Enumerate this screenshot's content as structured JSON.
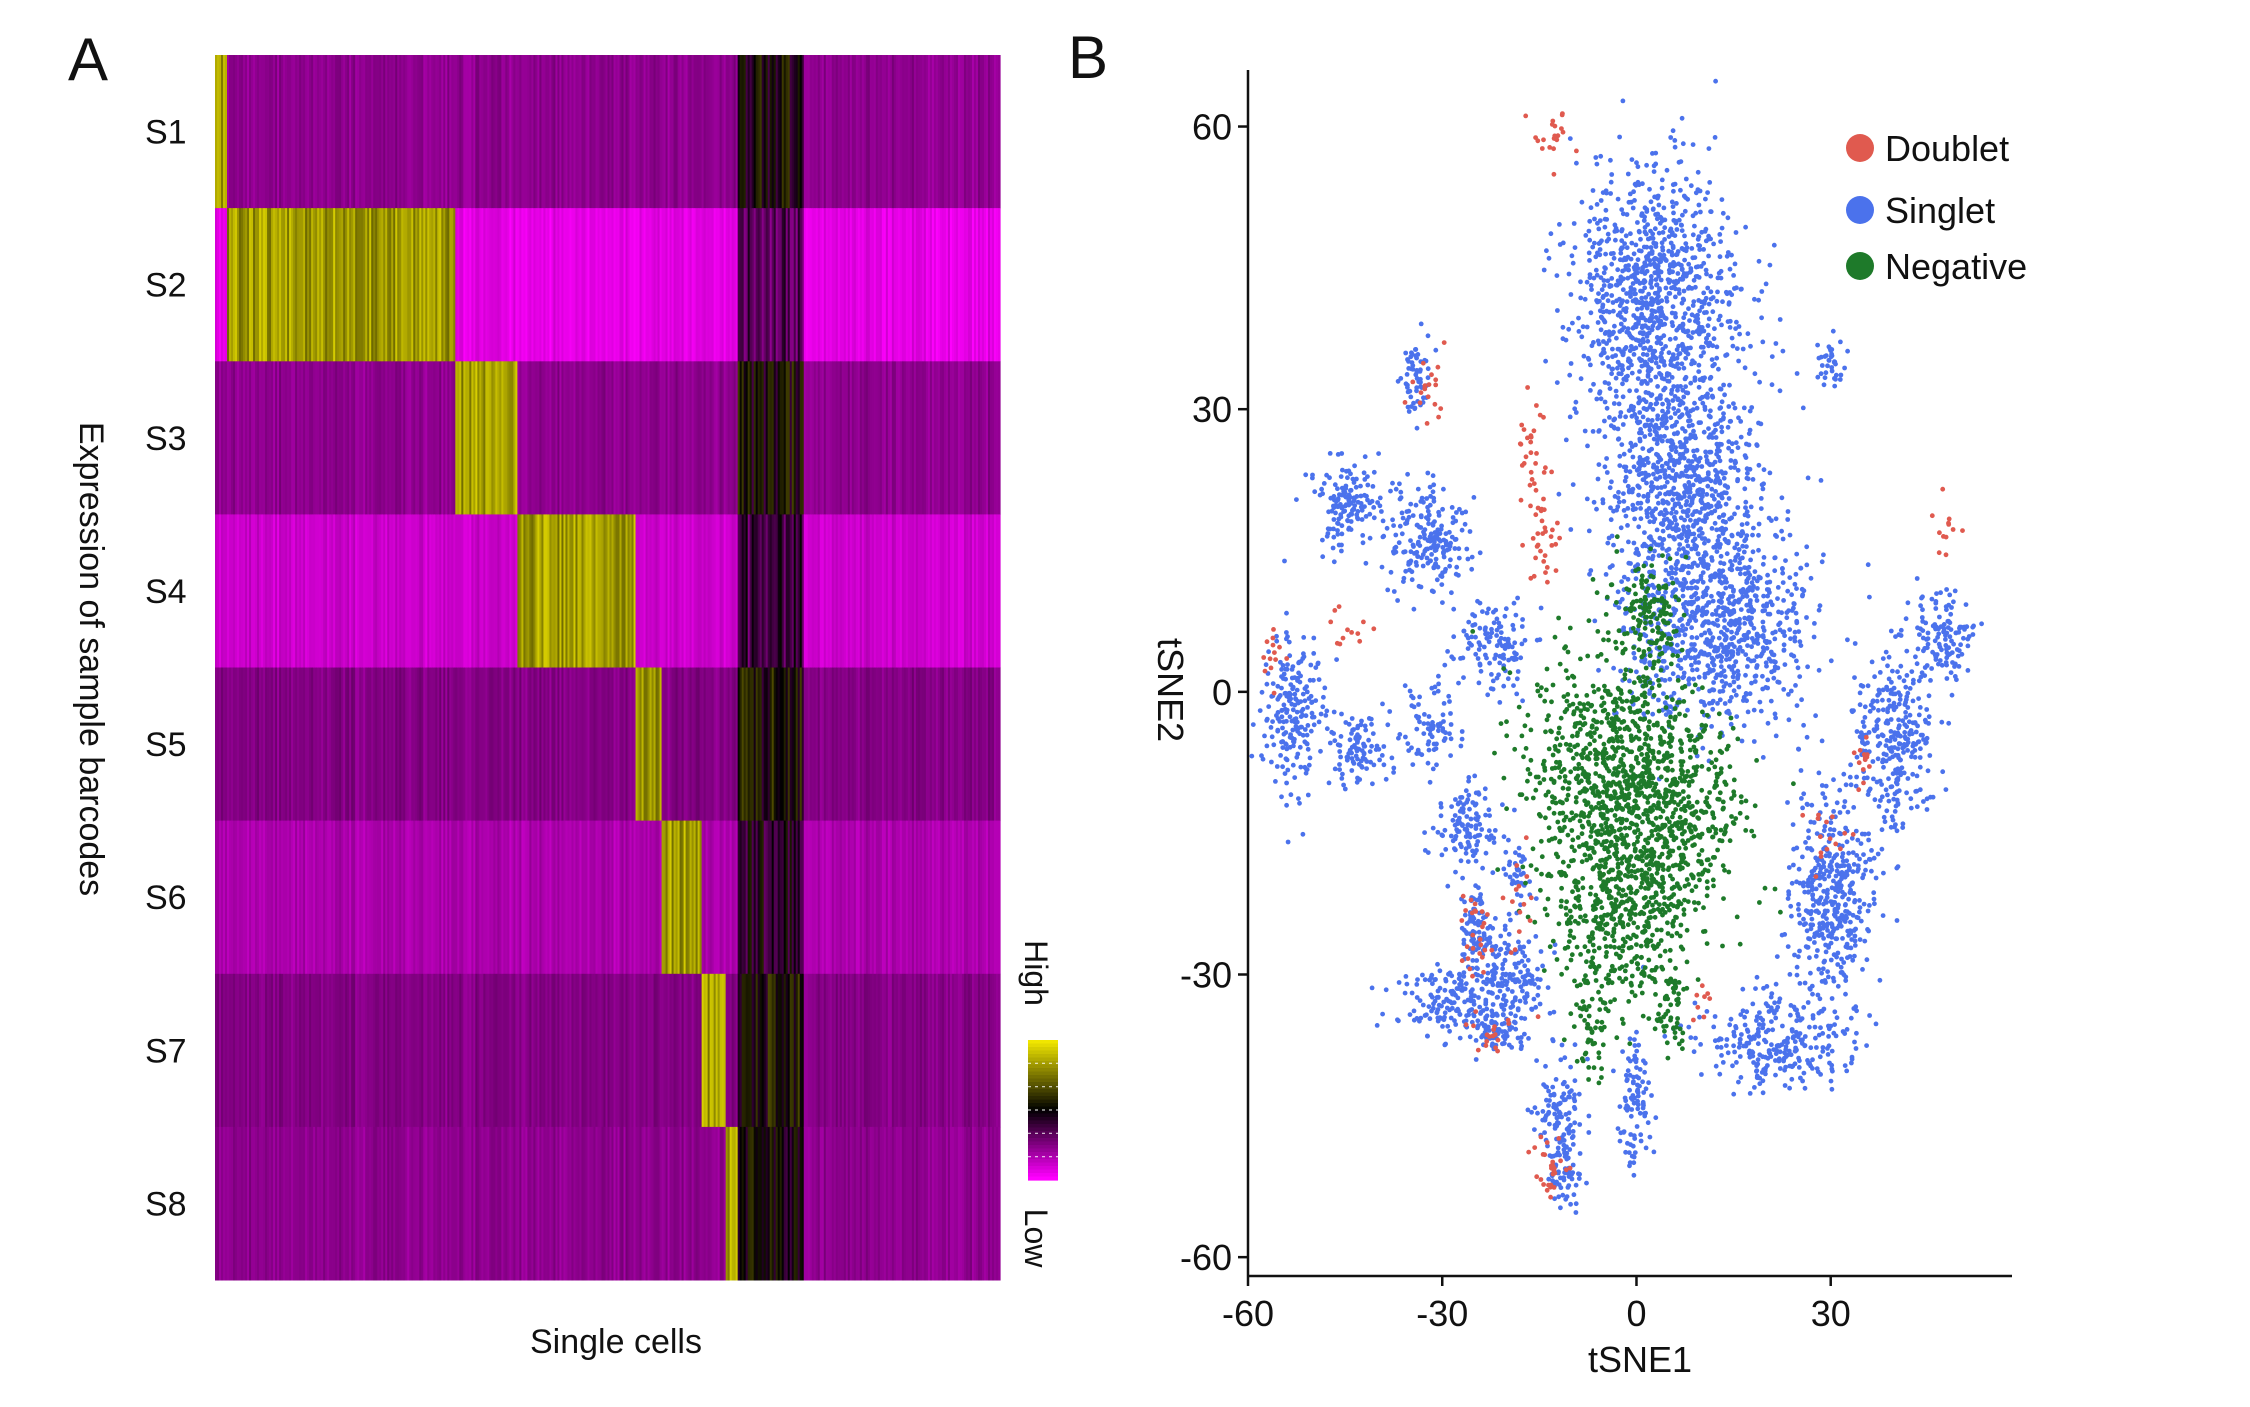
{
  "chart_data": [
    {
      "panel_label": "A",
      "type": "heatmap",
      "ylabel": "Expression of sample barcodes",
      "xlabel": "Single cells",
      "rows": [
        "S1",
        "S2",
        "S3",
        "S4",
        "S5",
        "S6",
        "S7",
        "S8"
      ],
      "row_heights": [
        1.0,
        1.0,
        1.0,
        1.0,
        1.0,
        1.0,
        1.0,
        1.0
      ],
      "groups": [
        {
          "name": "S1",
          "cell_fraction": 0.015
        },
        {
          "name": "S2",
          "cell_fraction": 0.29
        },
        {
          "name": "S3",
          "cell_fraction": 0.08
        },
        {
          "name": "S4",
          "cell_fraction": 0.15
        },
        {
          "name": "S5",
          "cell_fraction": 0.035
        },
        {
          "name": "S6",
          "cell_fraction": 0.05
        },
        {
          "name": "S7",
          "cell_fraction": 0.03
        },
        {
          "name": "S8",
          "cell_fraction": 0.015
        },
        {
          "name": "Doublet",
          "cell_fraction": 0.085
        },
        {
          "name": "Negative",
          "cell_fraction": 0.25
        }
      ],
      "row_background_levels": [
        0.22,
        0.05,
        0.22,
        0.1,
        0.24,
        0.16,
        0.24,
        0.22
      ],
      "color_scale": {
        "high": "#f0e600",
        "mid": "#000000",
        "low": "#ff00ff"
      },
      "legend_high": "High",
      "legend_low": "Low"
    },
    {
      "panel_label": "B",
      "type": "scatter",
      "xlabel": "tSNE1",
      "ylabel": "tSNE2",
      "xlim": [
        -60,
        58
      ],
      "ylim": [
        -62,
        66
      ],
      "xticks": [
        -60,
        -30,
        0,
        30
      ],
      "yticks": [
        60,
        30,
        0,
        -30,
        -60
      ],
      "grid": false,
      "legend_position": "top-right",
      "series": [
        {
          "name": "Doublet",
          "color": "#e05a4f",
          "n_points": 260,
          "regions": [
            [
              -13,
              59,
              3,
              3
            ],
            [
              -32,
              33,
              2,
              4
            ],
            [
              -16,
              24,
              2,
              6
            ],
            [
              -14,
              16,
              2,
              4
            ],
            [
              -45,
              7,
              3,
              2
            ],
            [
              -57,
              4,
              2,
              3
            ],
            [
              -18,
              -22,
              2,
              4
            ],
            [
              -25,
              -25,
              2,
              4
            ],
            [
              -22,
              -36,
              3,
              2
            ],
            [
              35,
              -7,
              2,
              3
            ],
            [
              47,
              18,
              2,
              4
            ],
            [
              -13,
              -51,
              2,
              3
            ],
            [
              29,
              -15,
              3,
              3
            ],
            [
              10,
              -33,
              2,
              2
            ]
          ]
        },
        {
          "name": "Singlet",
          "color": "#4b72ec",
          "n_points": 5600,
          "regions": [
            [
              3,
              41,
              11,
              12
            ],
            [
              7,
              22,
              10,
              9
            ],
            [
              12,
              7,
              12,
              9
            ],
            [
              -32,
              16,
              5,
              5
            ],
            [
              -44,
              20,
              5,
              4
            ],
            [
              -22,
              5,
              5,
              4
            ],
            [
              -53,
              -2,
              4,
              7
            ],
            [
              -43,
              -6,
              4,
              3
            ],
            [
              -32,
              -4,
              3,
              4
            ],
            [
              -26,
              -14,
              4,
              4
            ],
            [
              -30,
              -33,
              6,
              3
            ],
            [
              -20,
              -31,
              5,
              5
            ],
            [
              -12,
              -45,
              3,
              5
            ],
            [
              0,
              -43,
              2,
              6
            ],
            [
              22,
              -37,
              10,
              4
            ],
            [
              30,
              -22,
              6,
              9
            ],
            [
              40,
              -5,
              5,
              8
            ],
            [
              47,
              6,
              4,
              4
            ],
            [
              -34,
              33,
              2,
              4
            ],
            [
              30,
              35,
              2,
              2
            ],
            [
              -22,
              -36,
              4,
              2
            ],
            [
              -11,
              -52,
              2,
              3
            ],
            [
              -25,
              -25,
              2,
              4
            ],
            [
              -18,
              -20,
              2,
              3
            ]
          ]
        },
        {
          "name": "Negative",
          "color": "#1e7a2a",
          "n_points": 1900,
          "regions": [
            [
              -5,
              -10,
              10,
              13
            ],
            [
              5,
              -12,
              9,
              11
            ],
            [
              -2,
              -25,
              8,
              7
            ],
            [
              2,
              8,
              4,
              5
            ],
            [
              -7,
              -35,
              2,
              5
            ],
            [
              5,
              -33,
              2,
              4
            ]
          ]
        }
      ]
    }
  ]
}
